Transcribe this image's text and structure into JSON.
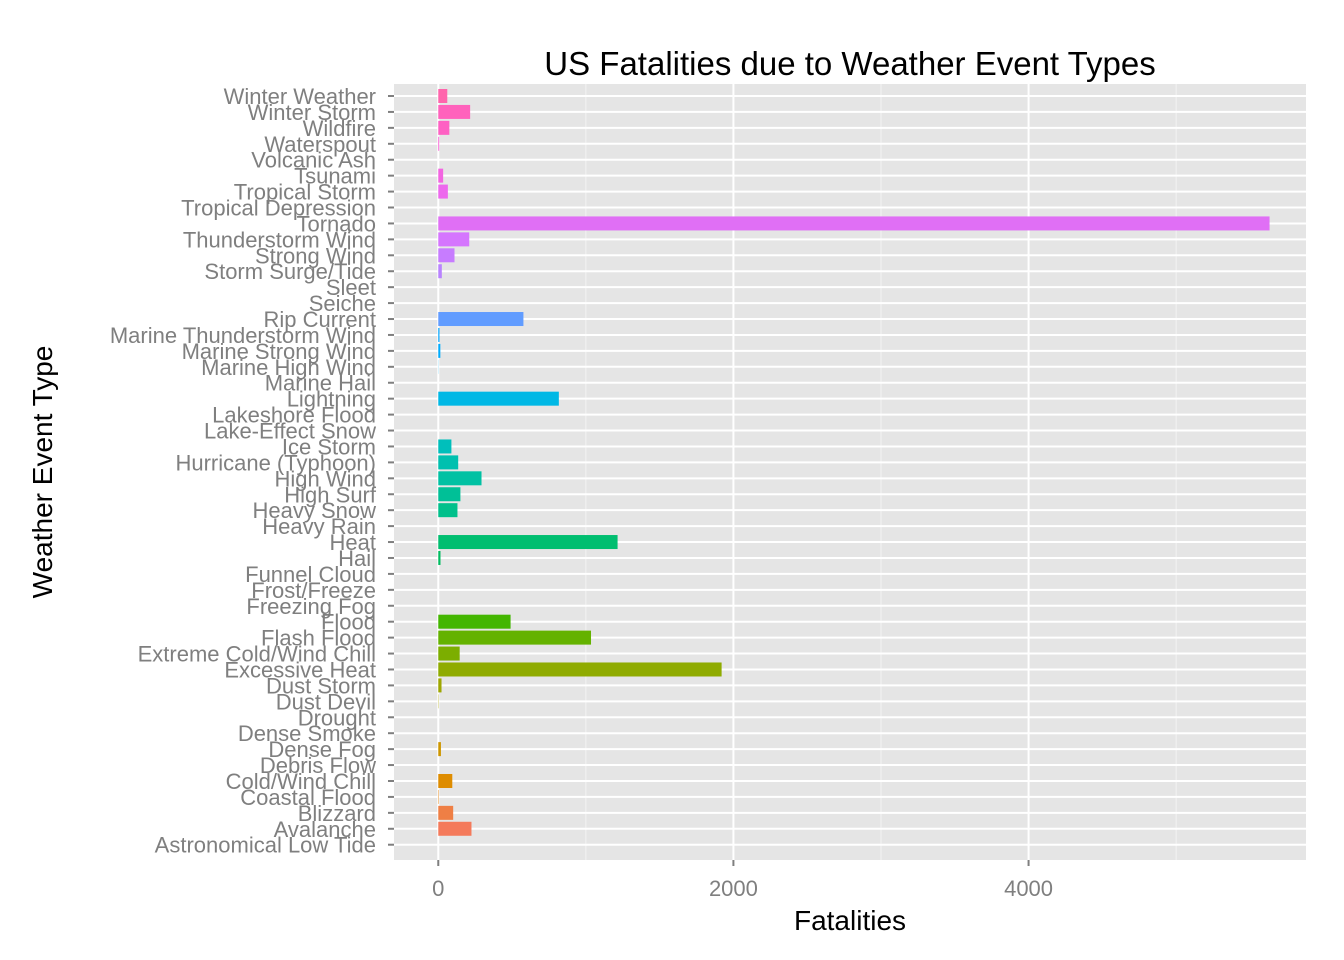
{
  "chart_data": {
    "type": "bar",
    "orientation": "horizontal",
    "title": "US Fatalities due to Weather Event Types",
    "xlabel": "Fatalities",
    "ylabel": "Weather Event Type",
    "xlim": [
      -300,
      5880
    ],
    "x_ticks": [
      0,
      2000,
      4000
    ],
    "x_tick_labels": [
      "0",
      "2000",
      "4000"
    ],
    "grid": true,
    "panel_background": "#e5e5e5",
    "categories": [
      "Astronomical Low Tide",
      "Avalanche",
      "Blizzard",
      "Coastal Flood",
      "Cold/Wind Chill",
      "Debris Flow",
      "Dense Fog",
      "Dense Smoke",
      "Drought",
      "Dust Devil",
      "Dust Storm",
      "Excessive Heat",
      "Extreme Cold/Wind Chill",
      "Flash Flood",
      "Flood",
      "Freezing Fog",
      "Frost/Freeze",
      "Funnel Cloud",
      "Hail",
      "Heat",
      "Heavy Rain",
      "Heavy Snow",
      "High Surf",
      "High Wind",
      "Hurricane (Typhoon)",
      "Ice Storm",
      "Lake-Effect Snow",
      "Lakeshore Flood",
      "Lightning",
      "Marine Hail",
      "Marine High Wind",
      "Marine Strong Wind",
      "Marine Thunderstorm Wind",
      "Rip Current",
      "Seiche",
      "Sleet",
      "Storm Surge/Tide",
      "Strong Wind",
      "Thunderstorm Wind",
      "Tornado",
      "Tropical Depression",
      "Tropical Storm",
      "Tsunami",
      "Volcanic Ash",
      "Waterspout",
      "Wildfire",
      "Winter Storm",
      "Winter Weather"
    ],
    "values": [
      0,
      225,
      101,
      3,
      95,
      0,
      18,
      0,
      0,
      2,
      22,
      1920,
      145,
      1035,
      490,
      0,
      0,
      0,
      15,
      1215,
      0,
      130,
      150,
      293,
      135,
      89,
      0,
      0,
      817,
      0,
      1,
      14,
      8,
      577,
      0,
      0,
      24,
      110,
      210,
      5633,
      0,
      65,
      33,
      0,
      6,
      75,
      216,
      61
    ],
    "colors": [
      "#f8766d",
      "#f47a5b",
      "#ef7f45",
      "#e68613",
      "#de8c00",
      "#d69100",
      "#cd9600",
      "#c29a00",
      "#b79f00",
      "#aba300",
      "#9ea700",
      "#8fab00",
      "#7cae00",
      "#64b200",
      "#43b600",
      "#00b81f",
      "#00ba38",
      "#00bb4e",
      "#00bc60",
      "#00be70",
      "#00bf7d",
      "#00c08b",
      "#00c097",
      "#00c1a3",
      "#00c0af",
      "#00bfbb",
      "#00bdc4",
      "#00bbce",
      "#00b8e5",
      "#00b4ef",
      "#00b0f6",
      "#00abfd",
      "#00a5ff",
      "#619cff",
      "#8f91ff",
      "#a58aff",
      "#b983ff",
      "#c77cff",
      "#d575fe",
      "#e06ff5",
      "#e76bf3",
      "#ed68ed",
      "#f365e1",
      "#f864d9",
      "#fb61d7",
      "#fe61c3",
      "#ff62bc",
      "#ff65ac"
    ]
  }
}
